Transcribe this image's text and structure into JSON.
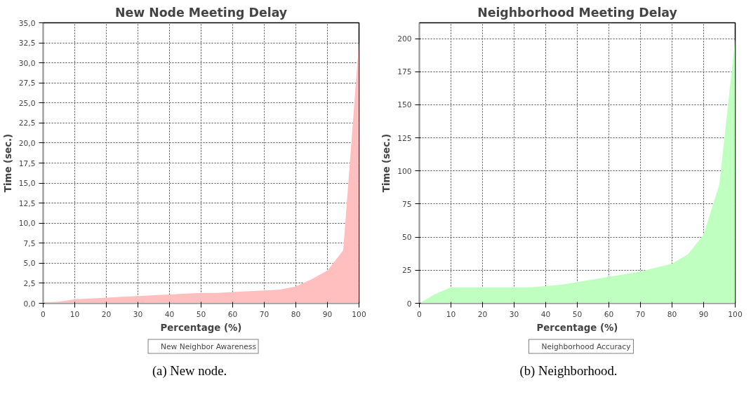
{
  "chart_data": [
    {
      "type": "area",
      "title": "New Node Meeting Delay",
      "xlabel": "Percentage (%)",
      "ylabel": "Time (sec.)",
      "x": [
        0,
        5,
        10,
        15,
        20,
        25,
        30,
        35,
        40,
        45,
        50,
        55,
        60,
        65,
        70,
        75,
        80,
        85,
        90,
        95,
        100
      ],
      "series": [
        {
          "name": "New Neighbor Awareness",
          "color": "#ffbfbf",
          "values": [
            0.1,
            0.2,
            0.5,
            0.6,
            0.7,
            0.8,
            0.9,
            1.0,
            1.1,
            1.2,
            1.3,
            1.3,
            1.4,
            1.5,
            1.6,
            1.7,
            2.1,
            3.0,
            4.1,
            6.6,
            32.7
          ]
        }
      ],
      "xlim": [
        0,
        100
      ],
      "xticks": [
        0,
        10,
        20,
        30,
        40,
        50,
        60,
        70,
        80,
        90,
        100
      ],
      "ylim": [
        0,
        35
      ],
      "yticks": [
        {
          "value": 0,
          "label": "0,0"
        },
        {
          "value": 2.5,
          "label": "2,5"
        },
        {
          "value": 5,
          "label": "5,0"
        },
        {
          "value": 7.5,
          "label": "7,5"
        },
        {
          "value": 10,
          "label": "10,0"
        },
        {
          "value": 12.5,
          "label": "12,5"
        },
        {
          "value": 15,
          "label": "15,0"
        },
        {
          "value": 17.5,
          "label": "17,5"
        },
        {
          "value": 20,
          "label": "20,0"
        },
        {
          "value": 22.5,
          "label": "22,5"
        },
        {
          "value": 25,
          "label": "25,0"
        },
        {
          "value": 27.5,
          "label": "27,5"
        },
        {
          "value": 30,
          "label": "30,0"
        },
        {
          "value": 32.5,
          "label": "32,5"
        },
        {
          "value": 35,
          "label": "35,0"
        }
      ],
      "grid": true,
      "legend": "bottom",
      "annotations": [
        "(a) New node."
      ]
    },
    {
      "type": "area",
      "title": "Neighborhood Meeting Delay",
      "xlabel": "Percentage (%)",
      "ylabel": "Time (sec.)",
      "x": [
        0,
        5,
        10,
        15,
        20,
        25,
        30,
        35,
        40,
        45,
        50,
        55,
        60,
        65,
        70,
        75,
        80,
        85,
        90,
        95,
        100
      ],
      "series": [
        {
          "name": "Neighborhood Accuracy",
          "color": "#bfffbf",
          "values": [
            0,
            7,
            12,
            12,
            12,
            12,
            12,
            12,
            13,
            14,
            16,
            18,
            20,
            22,
            24,
            27,
            30,
            37,
            52,
            90,
            200
          ]
        }
      ],
      "xlim": [
        0,
        100
      ],
      "xticks": [
        0,
        10,
        20,
        30,
        40,
        50,
        60,
        70,
        80,
        90,
        100
      ],
      "ylim": [
        0,
        212
      ],
      "yticks": [
        0,
        25,
        50,
        75,
        100,
        125,
        150,
        175,
        200
      ],
      "grid": true,
      "legend": "bottom",
      "annotations": [
        "(b) Neighborhood."
      ]
    }
  ]
}
